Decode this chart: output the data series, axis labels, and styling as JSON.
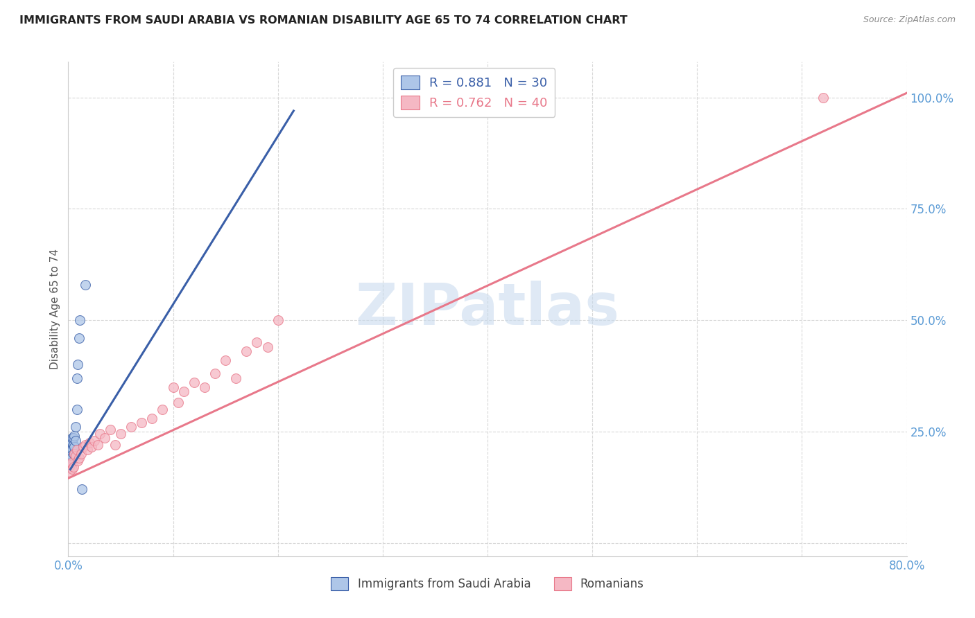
{
  "title": "IMMIGRANTS FROM SAUDI ARABIA VS ROMANIAN DISABILITY AGE 65 TO 74 CORRELATION CHART",
  "source": "Source: ZipAtlas.com",
  "ylabel": "Disability Age 65 to 74",
  "label1": "Immigrants from Saudi Arabia",
  "label2": "Romanians",
  "legend1_r": "0.881",
  "legend1_n": "30",
  "legend2_r": "0.762",
  "legend2_n": "40",
  "color_blue": "#aec6e8",
  "color_pink": "#f5b8c4",
  "line_blue": "#3a5fa8",
  "line_pink": "#e8788a",
  "xlim": [
    0.0,
    0.8
  ],
  "ylim": [
    -0.03,
    1.08
  ],
  "xticks": [
    0.0,
    0.1,
    0.2,
    0.3,
    0.4,
    0.5,
    0.6,
    0.7,
    0.8
  ],
  "xticklabels": [
    "0.0%",
    "",
    "",
    "",
    "",
    "",
    "",
    "",
    "80.0%"
  ],
  "yticks": [
    0.0,
    0.25,
    0.5,
    0.75,
    1.0
  ],
  "yticklabels": [
    "",
    "25.0%",
    "50.0%",
    "75.0%",
    "100.0%"
  ],
  "tick_color": "#5b9bd5",
  "watermark_text": "ZIPatlas",
  "blue_line_x": [
    0.002,
    0.215
  ],
  "blue_line_y": [
    0.165,
    0.97
  ],
  "pink_line_x": [
    0.0,
    0.8
  ],
  "pink_line_y": [
    0.145,
    1.01
  ],
  "saudi_x": [
    0.001,
    0.001,
    0.001,
    0.001,
    0.001,
    0.002,
    0.002,
    0.002,
    0.002,
    0.003,
    0.003,
    0.003,
    0.003,
    0.004,
    0.004,
    0.004,
    0.005,
    0.005,
    0.005,
    0.006,
    0.006,
    0.007,
    0.007,
    0.008,
    0.008,
    0.009,
    0.01,
    0.011,
    0.013,
    0.016
  ],
  "saudi_y": [
    0.17,
    0.185,
    0.195,
    0.205,
    0.21,
    0.18,
    0.2,
    0.215,
    0.22,
    0.19,
    0.215,
    0.225,
    0.23,
    0.21,
    0.225,
    0.235,
    0.2,
    0.22,
    0.235,
    0.215,
    0.24,
    0.23,
    0.26,
    0.3,
    0.37,
    0.4,
    0.46,
    0.5,
    0.12,
    0.58
  ],
  "romanian_x": [
    0.001,
    0.002,
    0.003,
    0.004,
    0.005,
    0.006,
    0.007,
    0.008,
    0.009,
    0.01,
    0.012,
    0.014,
    0.016,
    0.018,
    0.02,
    0.022,
    0.025,
    0.028,
    0.03,
    0.035,
    0.04,
    0.045,
    0.05,
    0.06,
    0.07,
    0.08,
    0.09,
    0.1,
    0.105,
    0.11,
    0.12,
    0.13,
    0.14,
    0.15,
    0.16,
    0.17,
    0.18,
    0.19,
    0.2,
    0.72
  ],
  "romanian_y": [
    0.16,
    0.175,
    0.18,
    0.165,
    0.17,
    0.2,
    0.195,
    0.21,
    0.185,
    0.19,
    0.2,
    0.215,
    0.22,
    0.21,
    0.225,
    0.215,
    0.23,
    0.22,
    0.245,
    0.235,
    0.255,
    0.22,
    0.245,
    0.26,
    0.27,
    0.28,
    0.3,
    0.35,
    0.315,
    0.34,
    0.36,
    0.35,
    0.38,
    0.41,
    0.37,
    0.43,
    0.45,
    0.44,
    0.5,
    1.0
  ]
}
